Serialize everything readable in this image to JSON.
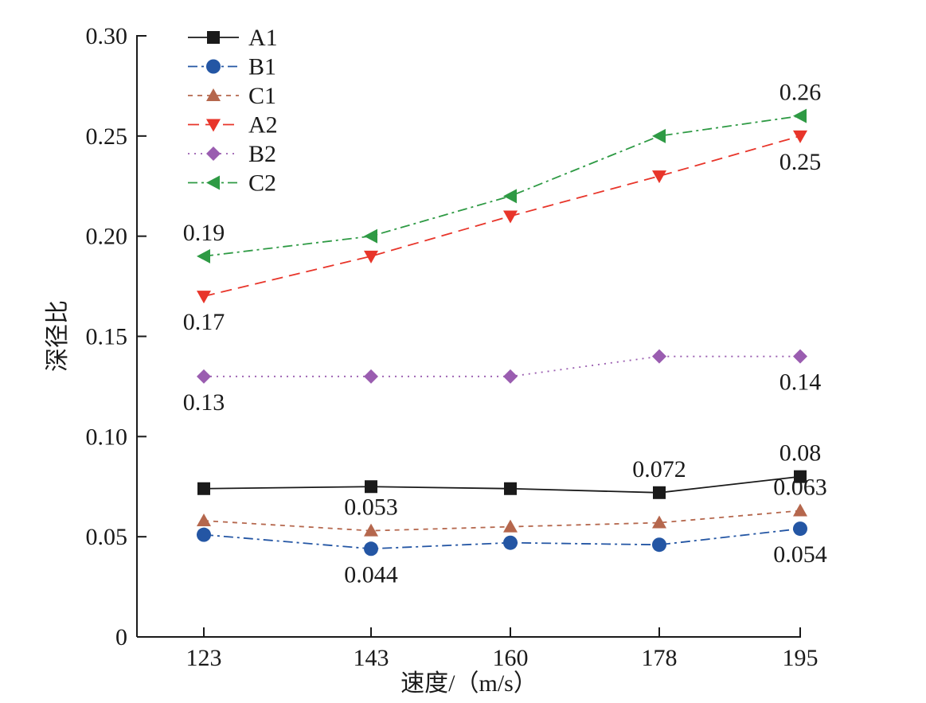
{
  "chart_data": {
    "type": "line",
    "xlabel": "速度/（m/s）",
    "ylabel": "深径比",
    "categories": [
      "123",
      "143",
      "160",
      "178",
      "195"
    ],
    "ylim": [
      0,
      0.3
    ],
    "yticks": [
      {
        "value": 0,
        "label": "0"
      },
      {
        "value": 0.05,
        "label": "0.05"
      },
      {
        "value": 0.1,
        "label": "0.10"
      },
      {
        "value": 0.15,
        "label": "0.15"
      },
      {
        "value": 0.2,
        "label": "0.20"
      },
      {
        "value": 0.25,
        "label": "0.25"
      },
      {
        "value": 0.3,
        "label": "0.30"
      }
    ],
    "grid": false,
    "legend_position": "top-left",
    "series": [
      {
        "name": "A1",
        "values": [
          0.074,
          0.075,
          0.074,
          0.072,
          0.08
        ],
        "color": "#1a1a1a",
        "marker": "square",
        "dash": "solid"
      },
      {
        "name": "B1",
        "values": [
          0.051,
          0.044,
          0.047,
          0.046,
          0.054
        ],
        "color": "#2456a4",
        "marker": "circle",
        "dash": "dashdot"
      },
      {
        "name": "C1",
        "values": [
          0.058,
          0.053,
          0.055,
          0.057,
          0.063
        ],
        "color": "#b5674d",
        "marker": "triangle-up",
        "dash": "dash"
      },
      {
        "name": "A2",
        "values": [
          0.17,
          0.19,
          0.21,
          0.23,
          0.25
        ],
        "color": "#e8352a",
        "marker": "triangle-down",
        "dash": "longdash"
      },
      {
        "name": "B2",
        "values": [
          0.13,
          0.13,
          0.13,
          0.14,
          0.14
        ],
        "color": "#9a5db0",
        "marker": "diamond",
        "dash": "dot"
      },
      {
        "name": "C2",
        "values": [
          0.19,
          0.2,
          0.22,
          0.25,
          0.26
        ],
        "color": "#2e9a44",
        "marker": "triangle-left",
        "dash": "dashdot"
      }
    ],
    "annotations": [
      {
        "text": "0.19",
        "series": "C2",
        "index": 0,
        "placement": "above"
      },
      {
        "text": "0.17",
        "series": "A2",
        "index": 0,
        "placement": "below"
      },
      {
        "text": "0.26",
        "series": "C2",
        "index": 4,
        "placement": "above"
      },
      {
        "text": "0.25",
        "series": "A2",
        "index": 4,
        "placement": "below"
      },
      {
        "text": "0.13",
        "series": "B2",
        "index": 0,
        "placement": "below"
      },
      {
        "text": "0.14",
        "series": "B2",
        "index": 4,
        "placement": "below"
      },
      {
        "text": "0.08",
        "series": "A1",
        "index": 4,
        "placement": "above"
      },
      {
        "text": "0.072",
        "series": "A1",
        "index": 3,
        "placement": "above"
      },
      {
        "text": "0.053",
        "series": "C1",
        "index": 1,
        "placement": "above"
      },
      {
        "text": "0.063",
        "series": "C1",
        "index": 4,
        "placement": "above"
      },
      {
        "text": "0.044",
        "series": "B1",
        "index": 1,
        "placement": "below"
      },
      {
        "text": "0.054",
        "series": "B1",
        "index": 4,
        "placement": "below"
      }
    ]
  }
}
